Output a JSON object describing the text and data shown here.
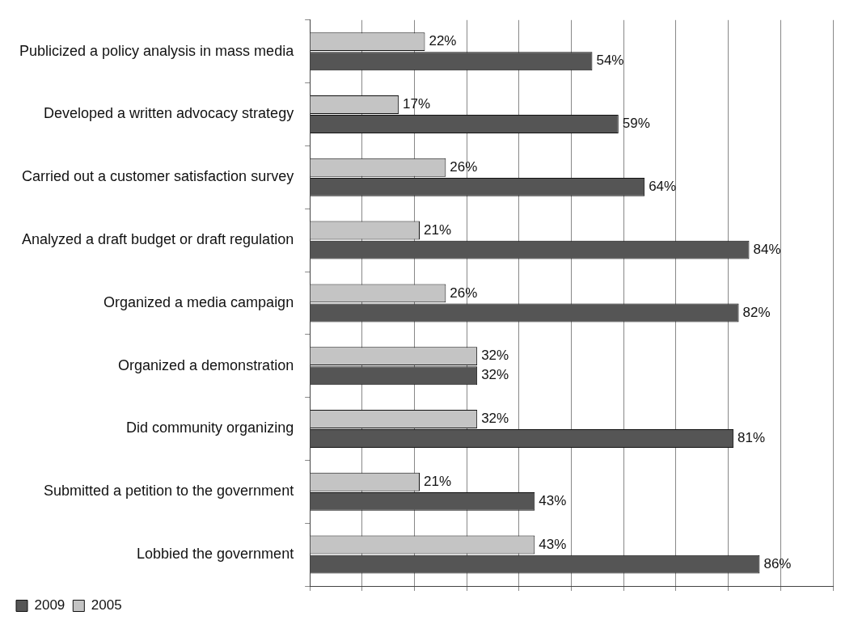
{
  "chart_data": {
    "type": "bar",
    "orientation": "horizontal",
    "categories": [
      "Publicized a policy analysis in mass media",
      "Developed a written advocacy strategy",
      "Carried out a customer satisfaction survey",
      "Analyzed a draft budget or draft regulation",
      "Organized a media campaign",
      "Organized a demonstration",
      "Did community organizing",
      "Submitted a petition to the government",
      "Lobbied the government"
    ],
    "series": [
      {
        "name": "2005",
        "color": "#c4c4c4",
        "values": [
          22,
          17,
          26,
          21,
          26,
          32,
          32,
          21,
          43
        ],
        "value_labels": [
          "22%",
          "17%",
          "26%",
          "21%",
          "26%",
          "32%",
          "32%",
          "21%",
          "43%"
        ]
      },
      {
        "name": "2009",
        "color": "#555555",
        "values": [
          54,
          59,
          64,
          84,
          82,
          32,
          81,
          43,
          86
        ],
        "value_labels": [
          "54%",
          "59%",
          "64%",
          "84%",
          "82%",
          "32%",
          "81%",
          "43%",
          "86%"
        ]
      }
    ],
    "xlim": [
      0,
      100
    ],
    "xticks": [
      {
        "value": 0,
        "label": null
      },
      {
        "value": 10,
        "label": null
      },
      {
        "value": 20,
        "label": null
      },
      {
        "value": 30,
        "label": null
      },
      {
        "value": 40,
        "label": null
      },
      {
        "value": 50,
        "label": null
      },
      {
        "value": 60,
        "label": null
      },
      {
        "value": 70,
        "label": null
      },
      {
        "value": 80,
        "label": null
      },
      {
        "value": 90,
        "label": null
      },
      {
        "value": 100,
        "label": null
      }
    ],
    "grid": "x",
    "legend": "bottom left",
    "tick_labels": "y"
  }
}
